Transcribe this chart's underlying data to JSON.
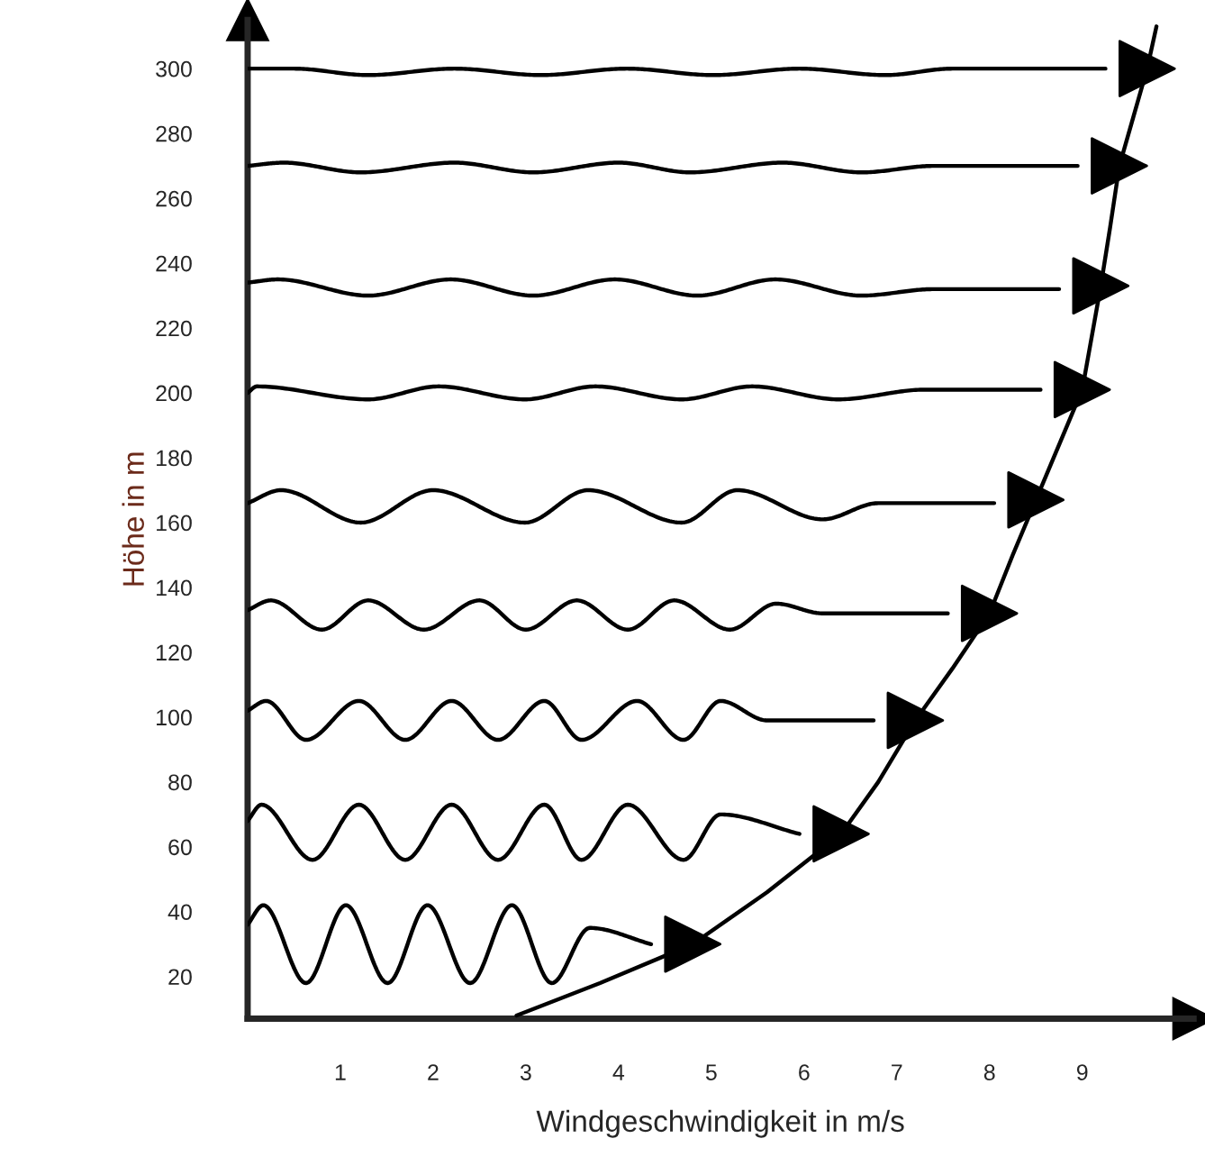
{
  "chart_data": {
    "type": "line",
    "xlabel": "Windgeschwindigkeit in m/s",
    "ylabel": "Höhe in m",
    "xlim": [
      0,
      10.2
    ],
    "ylim": [
      7,
      315
    ],
    "xticks": [
      1,
      2,
      3,
      4,
      5,
      6,
      7,
      8,
      9
    ],
    "yticks": [
      20,
      40,
      60,
      80,
      100,
      120,
      140,
      160,
      180,
      200,
      220,
      240,
      260,
      280,
      300
    ],
    "grid": false,
    "legend": false,
    "series": [
      {
        "type": "line",
        "color": "#000000",
        "x": [
          2.9,
          3.8,
          4.8,
          5.6,
          6.4,
          6.8,
          7.2,
          7.6,
          8.0,
          8.25,
          8.5,
          8.75,
          9.0,
          9.1,
          9.2,
          9.3,
          9.4,
          9.55,
          9.7,
          9.8
        ],
        "values": [
          8,
          18,
          30,
          46,
          64,
          80,
          99,
          115,
          132,
          150,
          167,
          184,
          201,
          217,
          233,
          251,
          270,
          285,
          300,
          313
        ]
      },
      {
        "type": "scatter",
        "color": "#000000",
        "marker": "triangle",
        "x": [
          4.8,
          6.4,
          7.2,
          8.0,
          8.5,
          9.0,
          9.2,
          9.4,
          9.7
        ],
        "values": [
          30,
          64,
          99,
          132,
          167,
          201,
          233,
          270,
          300
        ]
      },
      {
        "color": "#000000",
        "x": [
          0,
          0.17,
          0.63,
          1.06,
          1.51,
          1.94,
          2.4,
          2.85,
          3.28,
          3.69,
          4.35
        ],
        "values": [
          36,
          42,
          18,
          42,
          18,
          42,
          18,
          42,
          18,
          35,
          30
        ]
      },
      {
        "color": "#000000",
        "x": [
          0,
          0.15,
          0.7,
          1.2,
          1.7,
          2.2,
          2.7,
          3.2,
          3.6,
          4.1,
          4.7,
          5.1,
          5.95
        ],
        "values": [
          68,
          73,
          56,
          73,
          56,
          73,
          56,
          73,
          56,
          73,
          56,
          70,
          64
        ]
      },
      {
        "color": "#000000",
        "x": [
          0,
          0.2,
          0.63,
          1.2,
          1.7,
          2.2,
          2.7,
          3.2,
          3.6,
          4.2,
          4.7,
          5.1,
          5.6,
          6.75
        ],
        "values": [
          102,
          105,
          93,
          105,
          93,
          105,
          93,
          105,
          93,
          105,
          93,
          105,
          99,
          99
        ]
      },
      {
        "color": "#000000",
        "x": [
          0,
          0.25,
          0.8,
          1.3,
          1.9,
          2.5,
          3.0,
          3.55,
          4.1,
          4.6,
          5.2,
          5.7,
          6.2,
          7.55
        ],
        "values": [
          133,
          136,
          127,
          136,
          127,
          136,
          127,
          136,
          127,
          136,
          127,
          135,
          132,
          132
        ]
      },
      {
        "color": "#000000",
        "x": [
          0,
          0.36,
          1.22,
          2.0,
          2.99,
          3.67,
          4.68,
          5.28,
          6.2,
          6.8,
          8.05
        ],
        "values": [
          166,
          170,
          160,
          170,
          160,
          170,
          160,
          170,
          161,
          166,
          166
        ]
      },
      {
        "color": "#000000",
        "x": [
          0,
          0.1,
          1.3,
          2.06,
          2.99,
          3.75,
          4.68,
          5.44,
          6.37,
          7.3,
          8.55
        ],
        "values": [
          200,
          202,
          198,
          202,
          198,
          202,
          198,
          202,
          198,
          201,
          201
        ]
      },
      {
        "color": "#000000",
        "x": [
          0,
          0.33,
          1.3,
          2.19,
          3.08,
          3.96,
          4.85,
          5.69,
          6.62,
          7.4,
          8.75
        ],
        "values": [
          234,
          235,
          230,
          235,
          230,
          235,
          230,
          235,
          230,
          232,
          232
        ]
      },
      {
        "color": "#000000",
        "x": [
          0,
          0.39,
          1.22,
          2.23,
          3.08,
          4.0,
          4.77,
          5.77,
          6.62,
          7.4,
          8.95
        ],
        "values": [
          270,
          271,
          268,
          271,
          268,
          271,
          268,
          271,
          268,
          270,
          270
        ]
      },
      {
        "color": "#000000",
        "x": [
          0,
          0.5,
          1.3,
          2.23,
          3.16,
          4.09,
          5.02,
          5.95,
          6.88,
          7.6,
          9.25
        ],
        "values": [
          300,
          300,
          298,
          300,
          298,
          300,
          298,
          300,
          298,
          300,
          300
        ]
      }
    ]
  }
}
